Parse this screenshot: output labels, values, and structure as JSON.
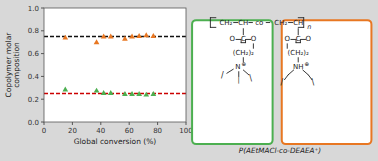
{
  "chart_data": {
    "type": "scatter",
    "xlabel": "Global conversion (%)",
    "ylabel": "Copolymer molar\ncomposition",
    "xlim": [
      0,
      100
    ],
    "ylim": [
      0.0,
      1.0
    ],
    "xticks": [
      0,
      20,
      40,
      60,
      80,
      100
    ],
    "yticks": [
      {
        "value": 0.0,
        "label": "0.0"
      },
      0.2,
      0.4,
      0.6,
      0.8,
      {
        "value": 1.0,
        "label": "1.0"
      }
    ],
    "grid": false,
    "series": [
      {
        "color": "#E87722",
        "marker": "triangle",
        "x": [
          15,
          37,
          42,
          47,
          57,
          62,
          67,
          72,
          77
        ],
        "values": [
          0.74,
          0.7,
          0.75,
          0.75,
          0.73,
          0.75,
          0.755,
          0.76,
          0.755
        ]
      },
      {
        "color": "#4CAF50",
        "marker": "triangle",
        "x": [
          15,
          37,
          42,
          47,
          57,
          62,
          67,
          72,
          77
        ],
        "values": [
          0.285,
          0.275,
          0.255,
          0.255,
          0.245,
          0.245,
          0.245,
          0.24,
          0.245
        ]
      }
    ],
    "hlines": [
      {
        "value": 0.75,
        "color": "#111111",
        "line_style": "dashed"
      },
      {
        "value": 0.25,
        "color": "#CC0000",
        "line_style": "dashed"
      }
    ],
    "annotations": [
      "CH₂",
      "CH",
      "co",
      "CH₂",
      "CH",
      "n",
      "O",
      "C",
      "O",
      "(CH₂)₂",
      "N",
      "⊕",
      "/",
      "|",
      "\\",
      "O",
      "C",
      "O",
      "(CH₂)₂",
      "NH",
      "⊕",
      "/",
      "\\",
      "P(AEtMACl-co-DEAEA⁺)"
    ]
  }
}
